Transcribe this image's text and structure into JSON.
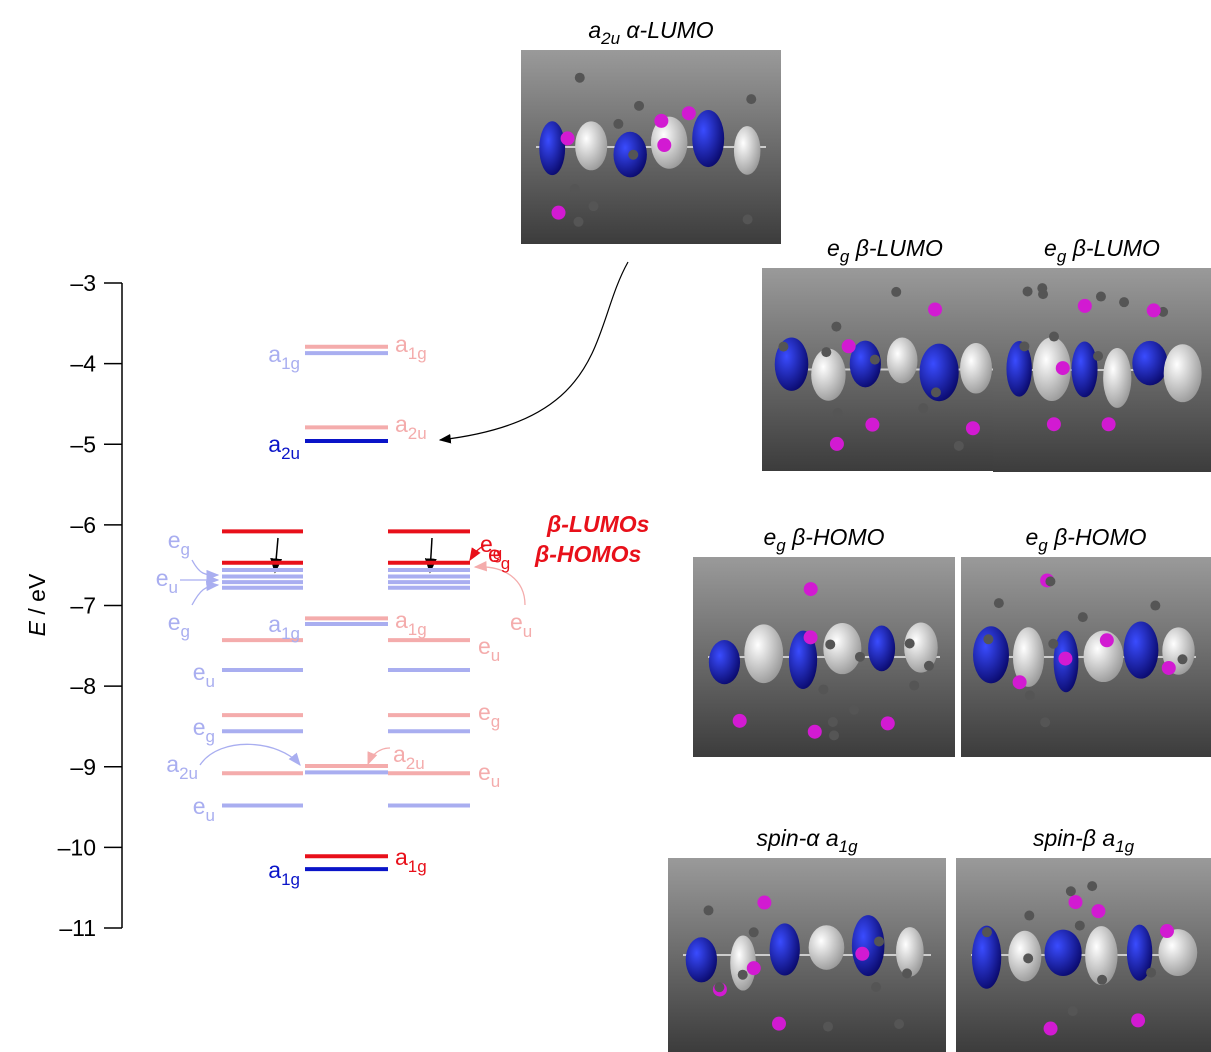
{
  "axis": {
    "title": "E",
    "unit": " / eV",
    "ylim": [
      -11,
      -3
    ],
    "ticks": [
      {
        "value": -3,
        "label": "–3"
      },
      {
        "value": -4,
        "label": "–4"
      },
      {
        "value": -5,
        "label": "–5"
      },
      {
        "value": -6,
        "label": "–6"
      },
      {
        "value": -7,
        "label": "–7"
      },
      {
        "value": -8,
        "label": "–8"
      },
      {
        "value": -9,
        "label": "–9"
      },
      {
        "value": -10,
        "label": "–10"
      },
      {
        "value": -11,
        "label": "–11"
      }
    ]
  },
  "levels": {
    "left": [
      {
        "energy": -6.08,
        "color": "#e8101a"
      },
      {
        "energy": -6.47,
        "color": "#e8101a"
      },
      {
        "energy": -6.56,
        "color": "#a9aef0"
      },
      {
        "energy": -6.64,
        "color": "#a9aef0"
      },
      {
        "energy": -6.71,
        "color": "#a9aef0"
      },
      {
        "energy": -6.78,
        "color": "#a9aef0"
      },
      {
        "energy": -7.43,
        "color": "#f4acac"
      },
      {
        "energy": -7.8,
        "color": "#a9aef0"
      },
      {
        "energy": -8.36,
        "color": "#f4acac"
      },
      {
        "energy": -8.56,
        "color": "#a9aef0"
      },
      {
        "energy": -9.08,
        "color": "#f4acac"
      },
      {
        "energy": -9.48,
        "color": "#a9aef0"
      }
    ],
    "middle": [
      {
        "energy": -3.79,
        "color": "#f4acac"
      },
      {
        "energy": -3.87,
        "color": "#a9aef0"
      },
      {
        "energy": -4.79,
        "color": "#f4acac"
      },
      {
        "energy": -4.96,
        "color": "#0a14c8"
      },
      {
        "energy": -7.16,
        "color": "#f4acac"
      },
      {
        "energy": -7.23,
        "color": "#a9aef0"
      },
      {
        "energy": -8.99,
        "color": "#f4acac"
      },
      {
        "energy": -9.07,
        "color": "#a9aef0"
      },
      {
        "energy": -10.11,
        "color": "#e8101a"
      },
      {
        "energy": -10.27,
        "color": "#0a14c8"
      }
    ],
    "right": [
      {
        "energy": -6.08,
        "color": "#e8101a"
      },
      {
        "energy": -6.47,
        "color": "#e8101a"
      },
      {
        "energy": -6.56,
        "color": "#a9aef0"
      },
      {
        "energy": -6.64,
        "color": "#a9aef0"
      },
      {
        "energy": -6.71,
        "color": "#a9aef0"
      },
      {
        "energy": -6.78,
        "color": "#a9aef0"
      },
      {
        "energy": -7.43,
        "color": "#f4acac"
      },
      {
        "energy": -7.8,
        "color": "#a9aef0"
      },
      {
        "energy": -8.36,
        "color": "#f4acac"
      },
      {
        "energy": -8.56,
        "color": "#a9aef0"
      },
      {
        "energy": -9.08,
        "color": "#f4acac"
      },
      {
        "energy": -9.48,
        "color": "#a9aef0"
      }
    ]
  },
  "level_labels": [
    {
      "symbol": "a",
      "sub": "1g",
      "color": "#a9aef0"
    },
    {
      "symbol": "a",
      "sub": "1g",
      "color": "#f4acac"
    },
    {
      "symbol": "a",
      "sub": "2u",
      "color": "#0a14c8"
    },
    {
      "symbol": "a",
      "sub": "2u",
      "color": "#f4acac"
    },
    {
      "symbol": "e",
      "sub": "g",
      "color": "#a9aef0"
    },
    {
      "symbol": "e",
      "sub": "u",
      "color": "#a9aef0"
    },
    {
      "symbol": "e",
      "sub": "g",
      "color": "#a9aef0"
    },
    {
      "symbol": "e",
      "sub": "g",
      "color": "#e8101a"
    },
    {
      "symbol": "e",
      "sub": "g",
      "color": "#e8101a"
    },
    {
      "symbol": "e",
      "sub": "u",
      "color": "#f4acac"
    },
    {
      "symbol": "a",
      "sub": "1g",
      "color": "#a9aef0"
    },
    {
      "symbol": "a",
      "sub": "1g",
      "color": "#f4acac"
    },
    {
      "symbol": "e",
      "sub": "u",
      "color": "#a9aef0"
    },
    {
      "symbol": "e",
      "sub": "u",
      "color": "#f4acac"
    },
    {
      "symbol": "e",
      "sub": "g",
      "color": "#a9aef0"
    },
    {
      "symbol": "e",
      "sub": "g",
      "color": "#f4acac"
    },
    {
      "symbol": "a",
      "sub": "2u",
      "color": "#a9aef0"
    },
    {
      "symbol": "a",
      "sub": "2u",
      "color": "#f4acac"
    },
    {
      "symbol": "e",
      "sub": "u",
      "color": "#f4acac"
    },
    {
      "symbol": "e",
      "sub": "u",
      "color": "#a9aef0"
    },
    {
      "symbol": "a",
      "sub": "1g",
      "color": "#0a14c8"
    },
    {
      "symbol": "a",
      "sub": "1g",
      "color": "#e8101a"
    }
  ],
  "spin_labels": [
    "β-LUMOs",
    "β-HOMOs"
  ],
  "orbitals": [
    {
      "caption": [
        {
          "text": "a"
        },
        {
          "sub": "2u"
        },
        {
          "text": " α-LUMO"
        }
      ]
    },
    {
      "caption": [
        {
          "text": "e"
        },
        {
          "sub": "g"
        },
        {
          "text": " β-LUMO"
        }
      ]
    },
    {
      "caption": [
        {
          "text": "e"
        },
        {
          "sub": "g"
        },
        {
          "text": " β-LUMO"
        }
      ]
    },
    {
      "caption": [
        {
          "text": "e"
        },
        {
          "sub": "g"
        },
        {
          "text": " β-HOMO"
        }
      ]
    },
    {
      "caption": [
        {
          "text": "e"
        },
        {
          "sub": "g"
        },
        {
          "text": " β-HOMO"
        }
      ]
    },
    {
      "caption": [
        {
          "text": "spin-α a"
        },
        {
          "sub": "1g"
        }
      ]
    },
    {
      "caption": [
        {
          "text": "spin-β a"
        },
        {
          "sub": "1g"
        }
      ]
    }
  ]
}
